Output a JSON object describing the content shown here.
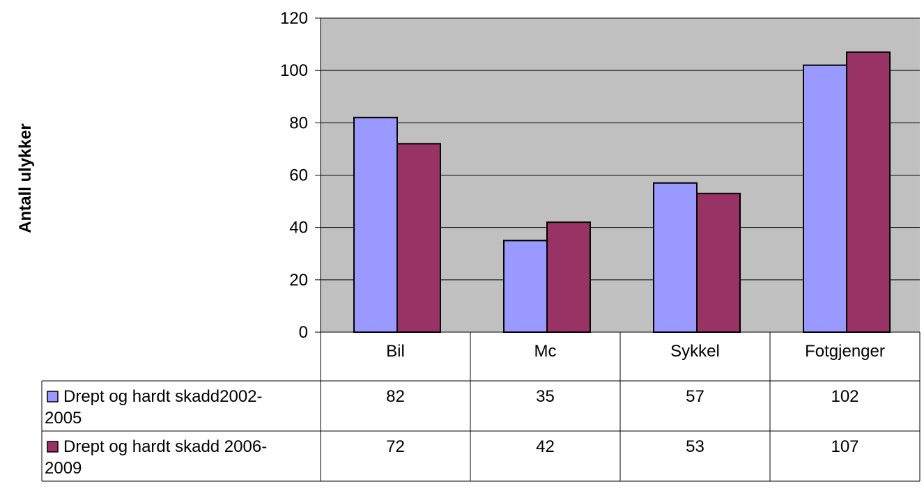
{
  "chart_data": {
    "type": "bar",
    "title": "",
    "xlabel": "",
    "ylabel": "Antall ulykker",
    "categories": [
      "Bil",
      "Mc",
      "Sykkel",
      "Fotgjenger"
    ],
    "series": [
      {
        "name": "Drept og hardt skadd2002-2005",
        "label_lines": [
          "Drept og hardt skadd2002-",
          "2005"
        ],
        "values": [
          82,
          35,
          57,
          102
        ],
        "color": "#9999ff"
      },
      {
        "name": "Drept og hardt skadd 2006-2009",
        "label_lines": [
          "Drept og hardt skadd 2006-",
          "2009"
        ],
        "values": [
          72,
          42,
          53,
          107
        ],
        "color": "#993366"
      }
    ],
    "ylim": [
      0,
      120
    ],
    "yticks": [
      0,
      20,
      40,
      60,
      80,
      100,
      120
    ],
    "grid": true,
    "legend": "data-table",
    "plot_background": "#c0c0c0"
  }
}
